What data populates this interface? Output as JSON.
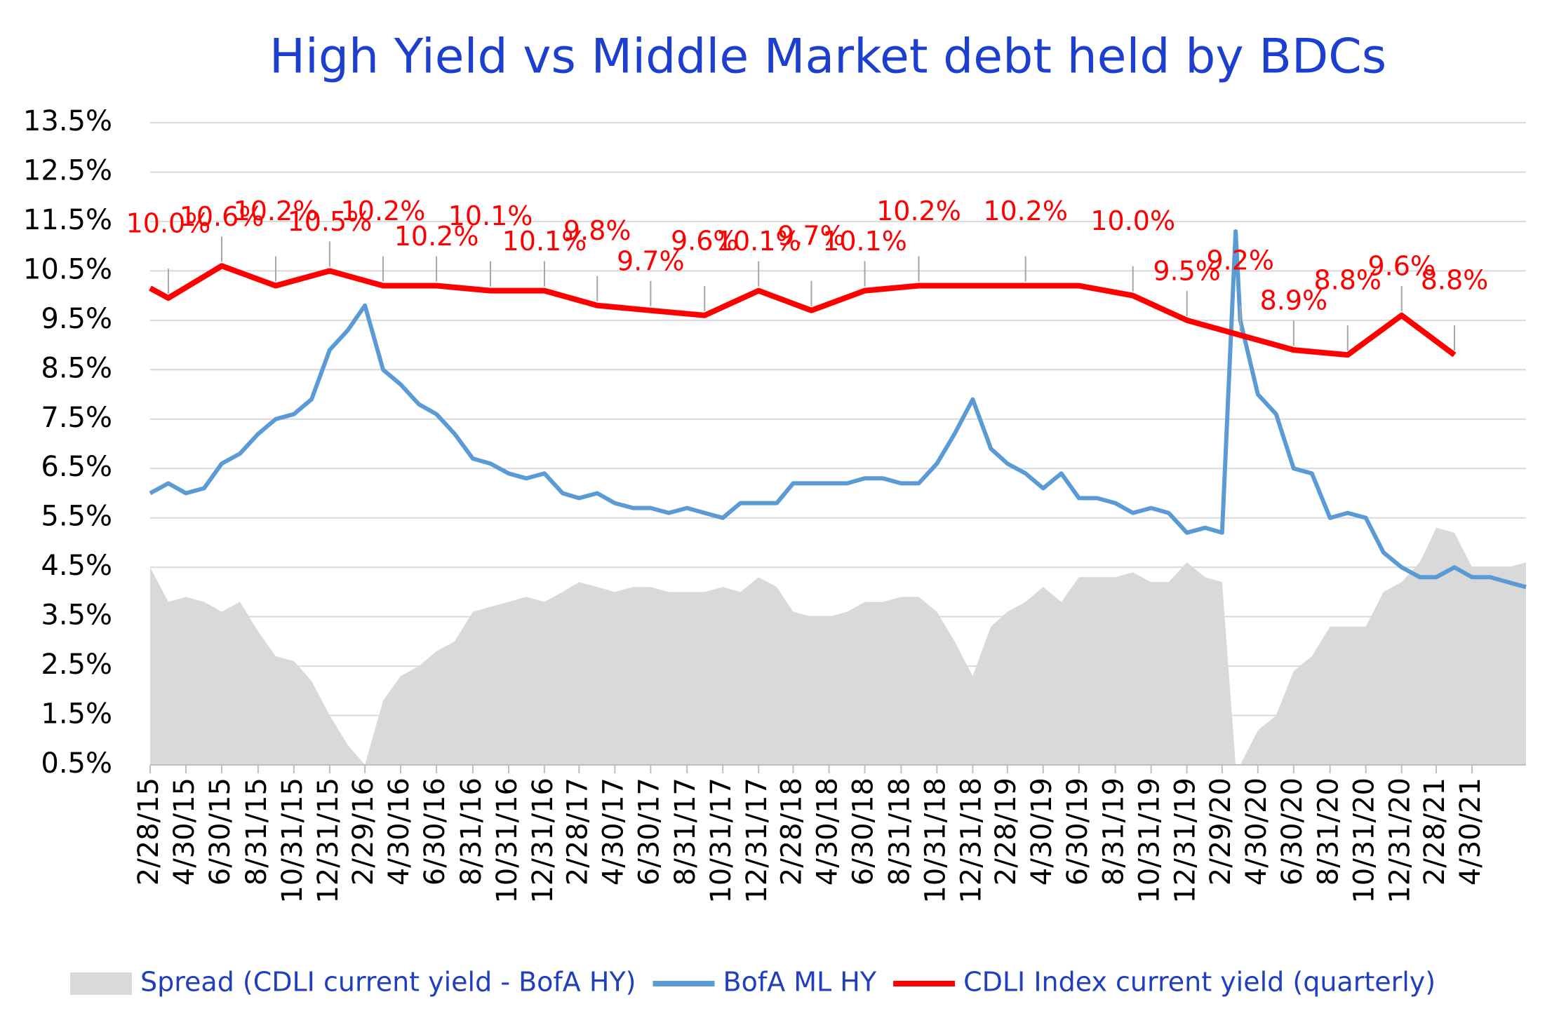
{
  "chart_data": {
    "type": "line",
    "title": "High Yield  vs  Middle Market debt held by BDCs",
    "ylim": [
      0.5,
      13.5
    ],
    "yticks": [
      {
        "value": 0.5,
        "label": "0.5%"
      },
      {
        "value": 1.5,
        "label": "1.5%"
      },
      {
        "value": 2.5,
        "label": "2.5%"
      },
      {
        "value": 3.5,
        "label": "3.5%"
      },
      {
        "value": 4.5,
        "label": "4.5%"
      },
      {
        "value": 5.5,
        "label": "5.5%"
      },
      {
        "value": 6.5,
        "label": "6.5%"
      },
      {
        "value": 7.5,
        "label": "7.5%"
      },
      {
        "value": 8.5,
        "label": "8.5%"
      },
      {
        "value": 9.5,
        "label": "9.5%"
      },
      {
        "value": 10.5,
        "label": "10.5%"
      },
      {
        "value": 11.5,
        "label": "11.5%"
      },
      {
        "value": 12.5,
        "label": "12.5%"
      },
      {
        "value": 13.5,
        "label": "13.5%"
      }
    ],
    "xlim": [
      "2/28/15",
      "7/31/21"
    ],
    "xticks": [
      "2/28/15",
      "4/30/15",
      "6/30/15",
      "8/31/15",
      "10/31/15",
      "12/31/15",
      "2/29/16",
      "4/30/16",
      "6/30/16",
      "8/31/16",
      "10/31/16",
      "12/31/16",
      "2/28/17",
      "4/30/17",
      "6/30/17",
      "8/31/17",
      "10/31/17",
      "12/31/17",
      "2/28/18",
      "4/30/18",
      "6/30/18",
      "8/31/18",
      "10/31/18",
      "12/31/18",
      "2/28/19",
      "4/30/19",
      "6/30/19",
      "8/31/19",
      "10/31/19",
      "12/31/19",
      "2/29/20",
      "4/30/20",
      "6/30/20",
      "8/31/20",
      "10/31/20",
      "12/31/20",
      "2/28/21",
      "4/30/21"
    ],
    "grid": true,
    "x": [
      "2/28/15",
      "3/31/15",
      "4/30/15",
      "5/31/15",
      "6/30/15",
      "7/31/15",
      "8/31/15",
      "9/30/15",
      "10/31/15",
      "11/30/15",
      "12/31/15",
      "1/31/16",
      "2/29/16",
      "3/31/16",
      "4/30/16",
      "5/31/16",
      "6/30/16",
      "7/31/16",
      "8/31/16",
      "9/30/16",
      "10/31/16",
      "11/30/16",
      "12/31/16",
      "1/31/17",
      "2/28/17",
      "3/31/17",
      "4/30/17",
      "5/31/17",
      "6/30/17",
      "7/31/17",
      "8/31/17",
      "9/30/17",
      "10/31/17",
      "11/30/17",
      "12/31/17",
      "1/31/18",
      "2/28/18",
      "3/31/18",
      "4/30/18",
      "5/31/18",
      "6/30/18",
      "7/31/18",
      "8/31/18",
      "9/30/18",
      "10/31/18",
      "11/30/18",
      "12/31/18",
      "1/31/19",
      "2/28/19",
      "3/31/19",
      "4/30/19",
      "5/31/19",
      "6/30/19",
      "7/31/19",
      "8/31/19",
      "9/30/19",
      "10/31/19",
      "11/30/19",
      "12/31/19",
      "1/31/20",
      "2/29/20",
      "3/23/20",
      "3/31/20",
      "4/30/20",
      "5/31/20",
      "6/30/20",
      "7/31/20",
      "8/31/20",
      "9/30/20",
      "10/31/20",
      "11/30/20",
      "12/31/20",
      "1/31/21",
      "2/28/21",
      "3/31/21",
      "4/30/21",
      "5/31/21",
      "6/30/21",
      "7/31/21"
    ],
    "series": [
      {
        "name": "Spread (CDLI current yield - BofA HY)",
        "color": "#d9d9d9",
        "kind": "area",
        "values": [
          4.5,
          3.8,
          3.9,
          3.8,
          3.6,
          3.8,
          3.2,
          2.7,
          2.6,
          2.2,
          1.5,
          0.9,
          0.5,
          1.8,
          2.3,
          2.5,
          2.8,
          3.0,
          3.6,
          3.7,
          3.8,
          3.9,
          3.8,
          4.0,
          4.2,
          4.1,
          4.0,
          4.1,
          4.1,
          4.0,
          4.0,
          4.0,
          4.1,
          4.0,
          4.3,
          4.1,
          3.6,
          3.5,
          3.5,
          3.6,
          3.8,
          3.8,
          3.9,
          3.9,
          3.6,
          3.0,
          2.3,
          3.3,
          3.6,
          3.8,
          4.1,
          3.8,
          4.3,
          4.3,
          4.3,
          4.4,
          4.2,
          4.2,
          4.6,
          4.3,
          4.2,
          0.5,
          0.5,
          1.2,
          1.5,
          2.4,
          2.7,
          3.3,
          3.3,
          3.3,
          4.0,
          4.2,
          4.6,
          5.3,
          5.2,
          4.5,
          4.5,
          4.5,
          4.6
        ]
      },
      {
        "name": "BofA ML HY",
        "color": "#5b9bd5",
        "kind": "line",
        "values": [
          6.0,
          6.2,
          6.0,
          6.1,
          6.6,
          6.8,
          7.2,
          7.5,
          7.6,
          7.9,
          8.9,
          9.3,
          9.8,
          8.5,
          8.2,
          7.8,
          7.6,
          7.2,
          6.7,
          6.6,
          6.4,
          6.3,
          6.4,
          6.0,
          5.9,
          6.0,
          5.8,
          5.7,
          5.7,
          5.6,
          5.7,
          5.6,
          5.5,
          5.8,
          5.8,
          5.8,
          6.2,
          6.2,
          6.2,
          6.2,
          6.3,
          6.3,
          6.2,
          6.2,
          6.6,
          7.2,
          7.9,
          6.9,
          6.6,
          6.4,
          6.1,
          6.4,
          5.9,
          5.9,
          5.8,
          5.6,
          5.7,
          5.6,
          5.2,
          5.3,
          5.2,
          11.3,
          9.5,
          8.0,
          7.6,
          6.5,
          6.4,
          5.5,
          5.6,
          5.5,
          4.8,
          4.5,
          4.3,
          4.3,
          4.5,
          4.3,
          4.3,
          4.2,
          4.1
        ]
      },
      {
        "name": "CDLI Index current yield (quarterly)",
        "color": "#ff0000",
        "kind": "line",
        "x": [
          "2/28/15",
          "3/31/15",
          "6/30/15",
          "9/30/15",
          "12/31/15",
          "3/31/16",
          "6/30/16",
          "9/30/16",
          "12/31/16",
          "3/31/17",
          "6/30/17",
          "9/30/17",
          "12/31/17",
          "3/31/18",
          "6/30/18",
          "9/30/18",
          "12/31/18",
          "3/31/19",
          "6/30/19",
          "9/30/19",
          "12/31/19",
          "3/31/20",
          "6/30/20",
          "9/30/20",
          "12/31/20",
          "3/31/21"
        ],
        "values": [
          10.15,
          9.95,
          10.6,
          10.2,
          10.5,
          10.2,
          10.2,
          10.1,
          10.1,
          9.8,
          9.7,
          9.6,
          10.1,
          9.7,
          10.1,
          10.2,
          10.2,
          10.2,
          10.2,
          10.0,
          9.5,
          9.2,
          8.9,
          8.8,
          9.6,
          8.8
        ],
        "value_labels": [
          null,
          "10.0%",
          "10.6%",
          "10.2%",
          "10.5%",
          "10.2%",
          "10.2%",
          "10.1%",
          "10.1%",
          "9.8%",
          "9.7%",
          "9.6%",
          "10.1%",
          "9.7%",
          "10.1%",
          "10.2%",
          null,
          "10.2%",
          null,
          "10.0%",
          "9.5%",
          "9.2%",
          "8.9%",
          "8.8%",
          "9.6%",
          "8.8%"
        ]
      }
    ]
  }
}
